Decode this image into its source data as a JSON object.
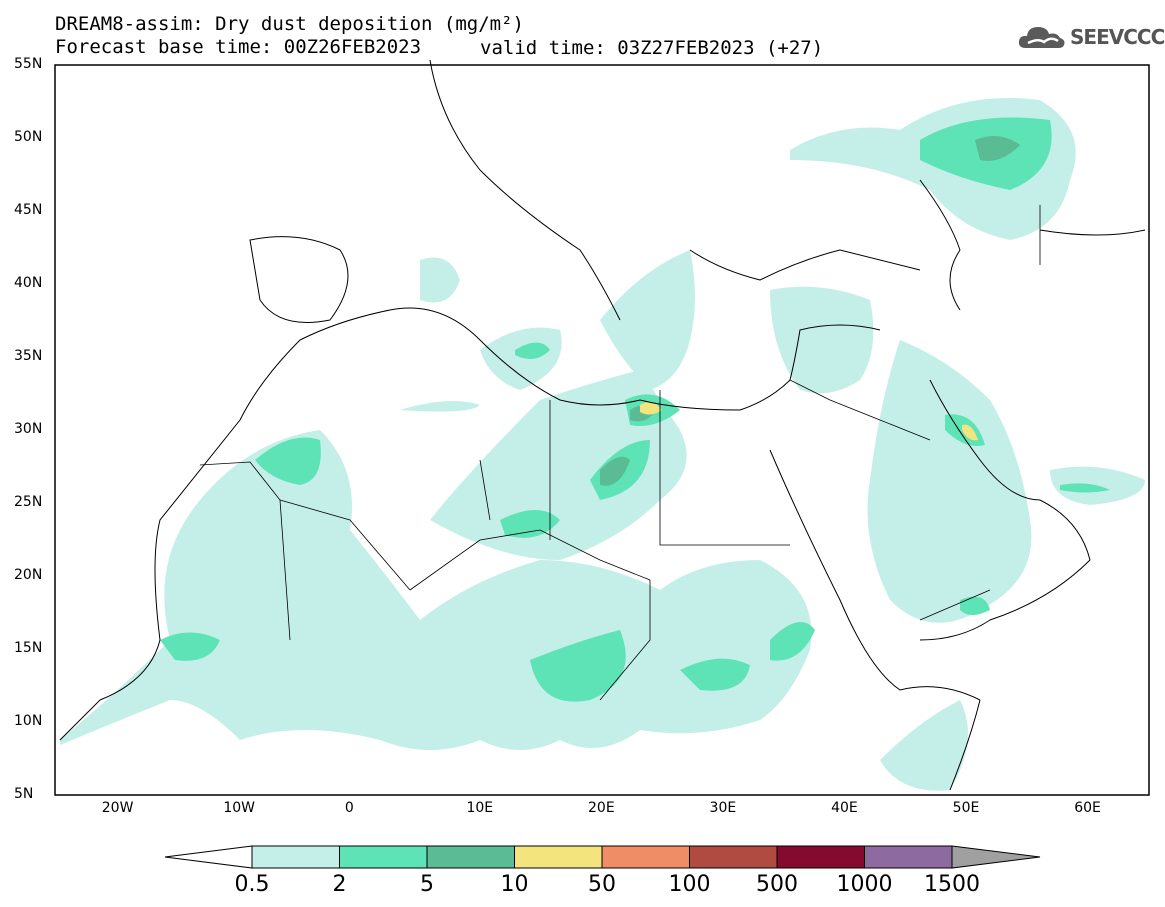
{
  "title": {
    "line1": "DREAM8-assim: Dry dust deposition (mg/m²)",
    "line2_left": "Forecast base time: 00Z26FEB2023",
    "line2_right": "valid time: 03Z27FEB2023 (+27)"
  },
  "logo": {
    "text": "SEEVCCC",
    "icon": "cloud-icon"
  },
  "axes": {
    "lat_labels": [
      "55N",
      "50N",
      "45N",
      "40N",
      "35N",
      "30N",
      "25N",
      "20N",
      "15N",
      "10N",
      "5N"
    ],
    "lon_labels": [
      "20W",
      "10W",
      "0",
      "10E",
      "20E",
      "30E",
      "40E",
      "50E",
      "60E"
    ]
  },
  "colorbar": {
    "labels": [
      "0.5",
      "2",
      "5",
      "10",
      "50",
      "100",
      "500",
      "1000",
      "1500"
    ],
    "colors": [
      "#c4efe9",
      "#5ee3b7",
      "#5bbb94",
      "#f4e47d",
      "#ef8e66",
      "#b04b41",
      "#840a2f",
      "#8d6aa0"
    ]
  },
  "chart_data": {
    "type": "heatmap",
    "title": "DREAM8-assim: Dry dust deposition (mg/m²)",
    "lat_range": [
      5,
      55
    ],
    "lon_range": [
      -25,
      65
    ],
    "levels": [
      0.5,
      2,
      5,
      10,
      50,
      100,
      500,
      1000,
      1500
    ],
    "units": "mg/m²"
  }
}
